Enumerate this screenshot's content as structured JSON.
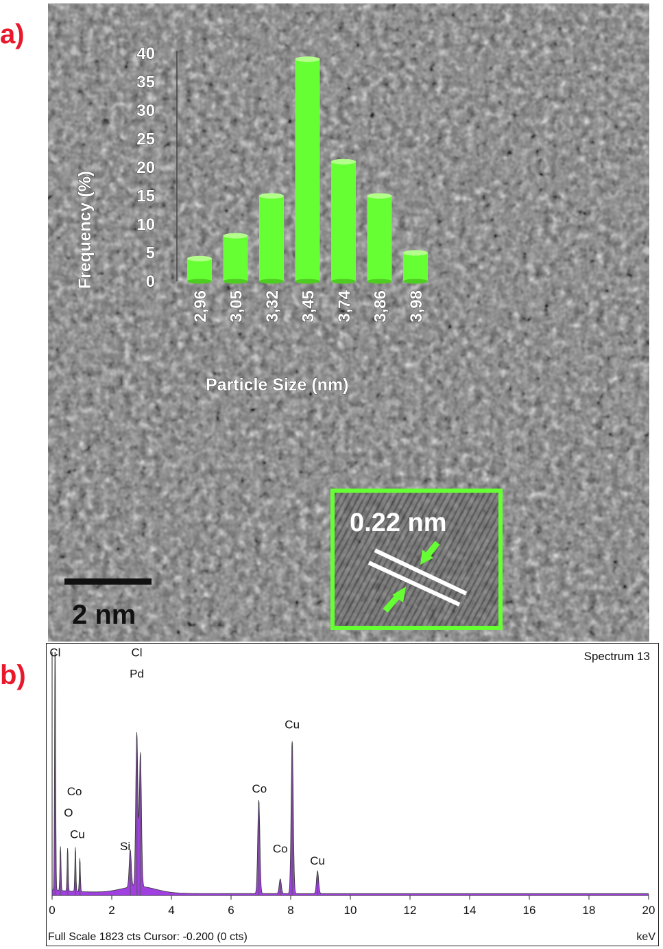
{
  "panel_a": {
    "label": "a)",
    "scale_bar": "2 nm",
    "lattice_spacing": "0.22 nm",
    "chart_data": {
      "type": "bar",
      "categories": [
        "2,96",
        "3,05",
        "3,32",
        "3,45",
        "3,74",
        "3,86",
        "3,98"
      ],
      "values": [
        4,
        8,
        15,
        39,
        21,
        15,
        5
      ],
      "xlabel": "Particle Size (nm)",
      "ylabel": "Frequency (%)",
      "ylim": [
        0,
        40
      ],
      "yticks": [
        "0",
        "5",
        "10",
        "15",
        "20",
        "25",
        "30",
        "35",
        "40"
      ],
      "bar_color": "#66ff33",
      "grid": false
    }
  },
  "panel_b": {
    "label": "b)",
    "spectrum_title": "Spectrum 13",
    "footer_left": "Full Scale 1823 cts Cursor: -0.200  (0 cts)",
    "footer_right": "keV",
    "chart_data": {
      "type": "area",
      "xlabel": "keV",
      "xlim": [
        0,
        20
      ],
      "xticks": [
        "0",
        "2",
        "4",
        "6",
        "8",
        "10",
        "12",
        "14",
        "16",
        "18",
        "20"
      ],
      "full_scale_cts": 1823,
      "fill_color": "#a040e0",
      "peaks": [
        {
          "x": 0.1,
          "y": 1823
        },
        {
          "x": 0.28,
          "y": 330
        },
        {
          "x": 0.52,
          "y": 320
        },
        {
          "x": 0.78,
          "y": 330
        },
        {
          "x": 0.93,
          "y": 250
        },
        {
          "x": 2.62,
          "y": 280
        },
        {
          "x": 2.84,
          "y": 1150
        },
        {
          "x": 2.96,
          "y": 1000
        },
        {
          "x": 6.93,
          "y": 700
        },
        {
          "x": 7.65,
          "y": 110
        },
        {
          "x": 8.05,
          "y": 1140
        },
        {
          "x": 8.9,
          "y": 170
        }
      ],
      "element_labels": [
        {
          "text": "Cl",
          "x": 0.1,
          "y": 1790
        },
        {
          "text": "Cl",
          "x": 2.84,
          "y": 1790
        },
        {
          "text": "Pd",
          "x": 2.84,
          "y": 1630
        },
        {
          "text": "Co",
          "x": 0.75,
          "y": 750
        },
        {
          "text": "O",
          "x": 0.55,
          "y": 590
        },
        {
          "text": "Cu",
          "x": 0.85,
          "y": 430
        },
        {
          "text": "Si",
          "x": 2.45,
          "y": 340
        },
        {
          "text": "Co",
          "x": 6.95,
          "y": 770
        },
        {
          "text": "Co",
          "x": 7.65,
          "y": 320
        },
        {
          "text": "Cu",
          "x": 8.05,
          "y": 1250
        },
        {
          "text": "Cu",
          "x": 8.9,
          "y": 230
        }
      ]
    }
  }
}
